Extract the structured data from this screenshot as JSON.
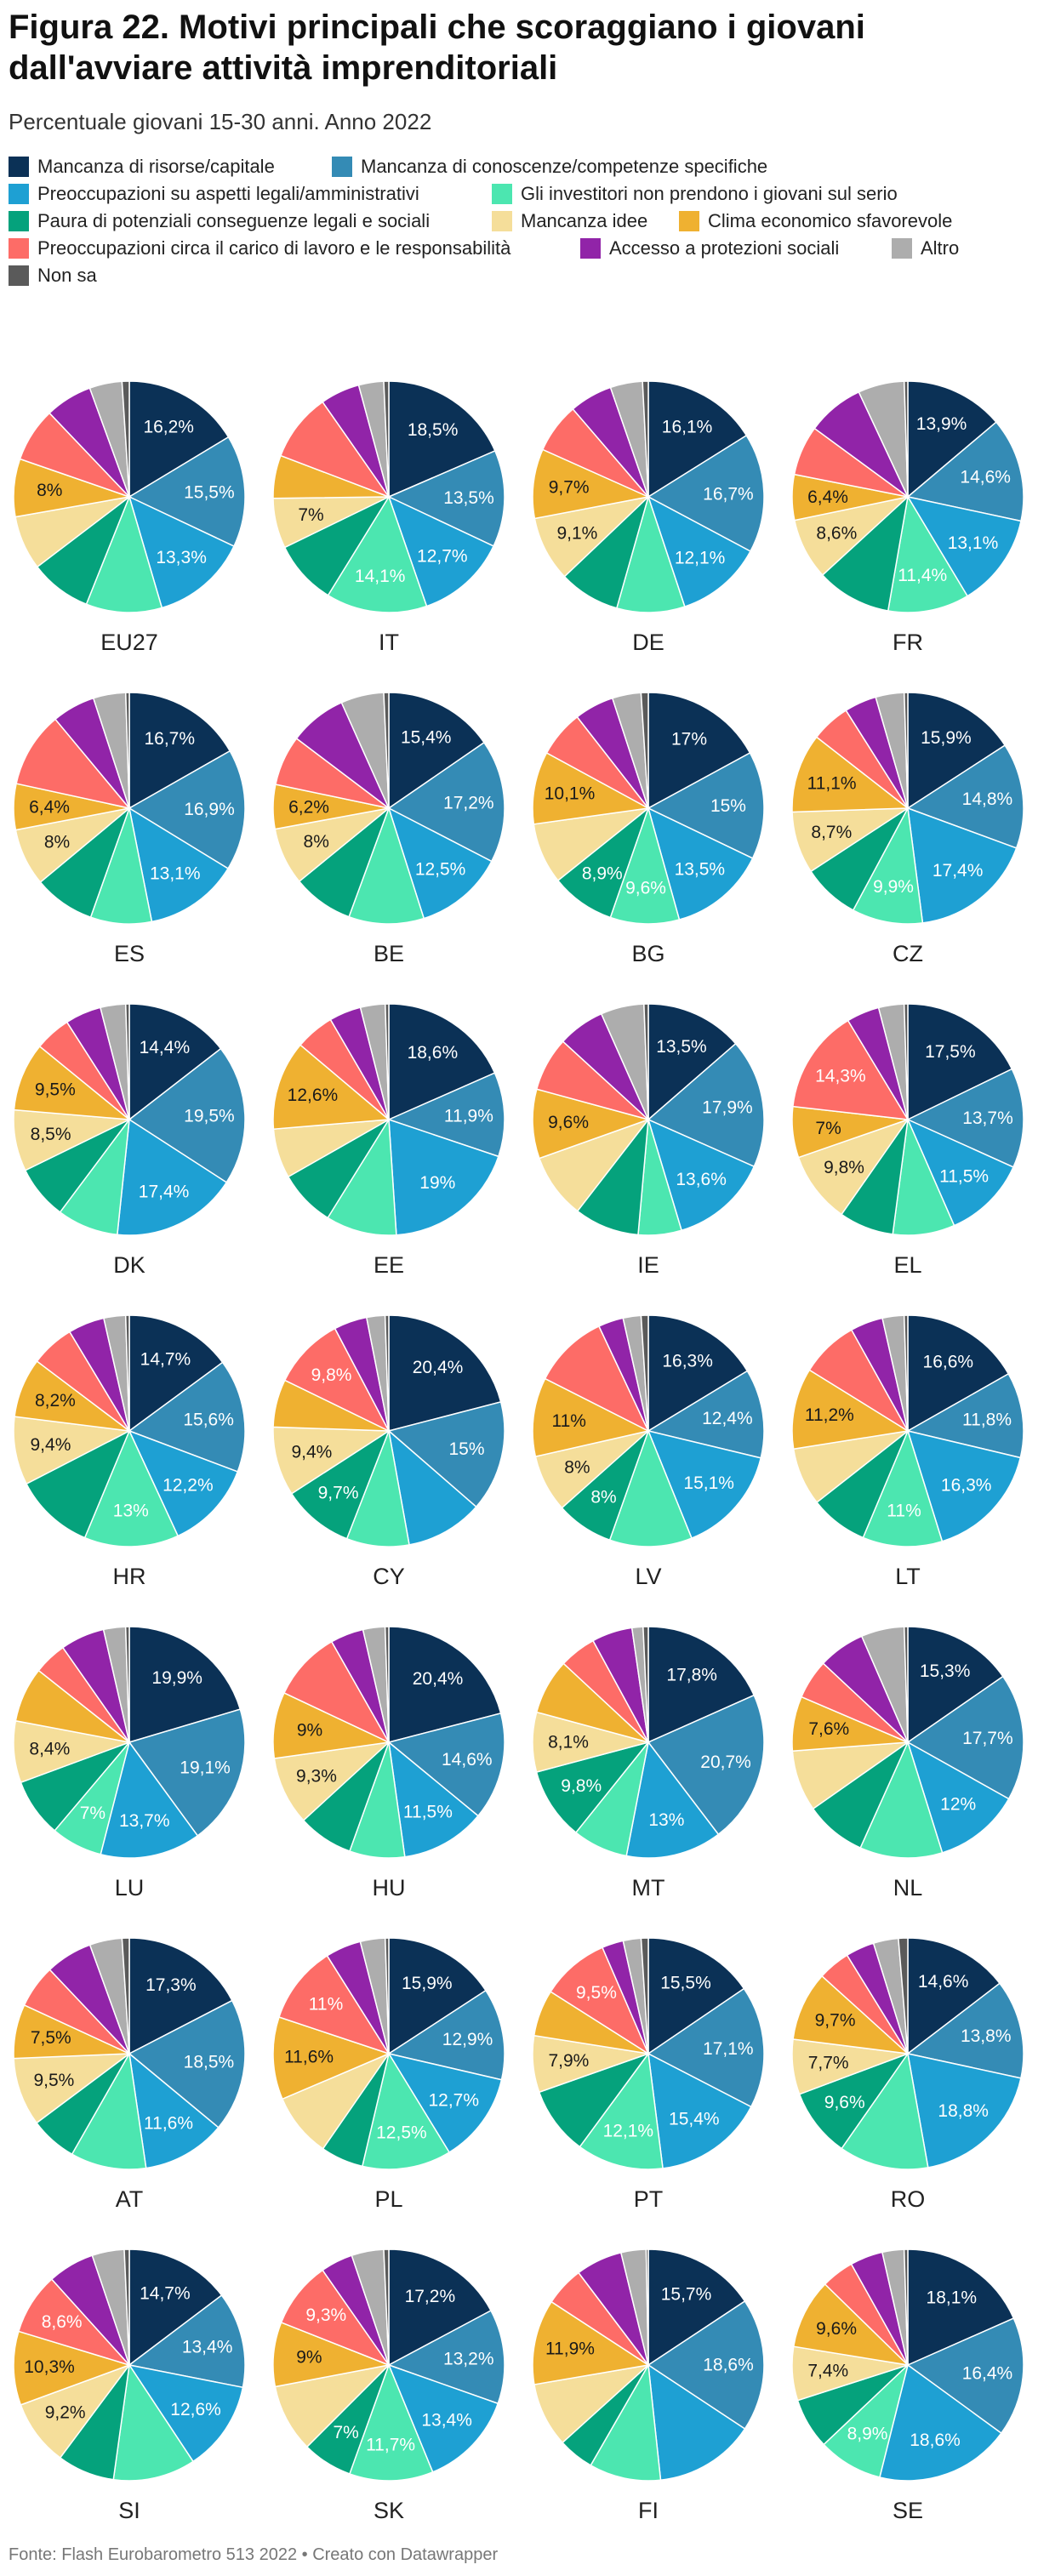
{
  "title": "Figura 22. Motivi principali che scoraggiano i giovani dall'avviare attività imprenditoriali",
  "subtitle": "Percentuale giovani 15-30 anni. Anno 2022",
  "footer": "Fonte: Flash Eurobarometro 513 2022 • Creato con Datawrapper",
  "colors": {
    "label_light": "#ffffff",
    "label_dark": "#1a1a1a",
    "separator": "#ffffff"
  },
  "legend": [
    {
      "label": "Mancanza di risorse/capitale",
      "color": "#0b3156"
    },
    {
      "label": "Mancanza di conoscenze/competenze specifiche",
      "color": "#348bb5"
    },
    {
      "label": "Preoccupazioni su aspetti legali/amministrativi",
      "color": "#1ea0d3"
    },
    {
      "label": "Gli investitori non prendono i giovani sul serio",
      "color": "#4ce6b0"
    },
    {
      "label": "Paura di potenziali conseguenze legali e sociali",
      "color": "#05a27c"
    },
    {
      "label": "Mancanza idee",
      "color": "#f5de9a"
    },
    {
      "label": "Clima economico sfavorevole",
      "color": "#efb131"
    },
    {
      "label": "Preoccupazioni circa il carico di lavoro e le responsabilità",
      "color": "#fd6c67"
    },
    {
      "label": "Accesso a protezioni sociali",
      "color": "#9124a8"
    },
    {
      "label": "Altro",
      "color": "#adadad"
    },
    {
      "label": "Non sa",
      "color": "#5a5a5a"
    }
  ],
  "chart_data": {
    "type": "pie",
    "unit": "%",
    "categories": [
      "Mancanza di risorse/capitale",
      "Mancanza di conoscenze/competenze specifiche",
      "Preoccupazioni su aspetti legali/amministrativi",
      "Gli investitori non prendono i giovani sul serio",
      "Paura di potenziali conseguenze legali e sociali",
      "Mancanza idee",
      "Clima economico sfavorevole",
      "Preoccupazioni circa il carico di lavoro e le responsabilità",
      "Accesso a protezioni sociali",
      "Altro",
      "Non sa"
    ],
    "series": [
      {
        "name": "EU27",
        "values": [
          16.2,
          15.5,
          13.3,
          10.5,
          8.5,
          7.5,
          8.0,
          7.5,
          6.5,
          4.5,
          1.0
        ],
        "labels": [
          "16,2%",
          "15,5%",
          "13,3%",
          "",
          "",
          "",
          "8%",
          "",
          "",
          "",
          ""
        ]
      },
      {
        "name": "IT",
        "values": [
          18.5,
          13.5,
          12.7,
          14.1,
          9.0,
          7.0,
          6.0,
          9.5,
          5.5,
          3.5,
          0.7
        ],
        "labels": [
          "18,5%",
          "13,5%",
          "12,7%",
          "14,1%",
          "",
          "7%",
          "",
          "",
          "",
          "",
          ""
        ]
      },
      {
        "name": "DE",
        "values": [
          16.1,
          16.7,
          12.1,
          9.5,
          8.5,
          9.1,
          9.7,
          7.0,
          6.0,
          4.5,
          0.8
        ],
        "labels": [
          "16,1%",
          "16,7%",
          "12,1%",
          "",
          "",
          "9,1%",
          "9,7%",
          "",
          "",
          "",
          ""
        ]
      },
      {
        "name": "FR",
        "values": [
          13.9,
          14.6,
          13.1,
          11.4,
          10.5,
          8.6,
          6.4,
          7.0,
          8.0,
          6.5,
          0.5
        ],
        "labels": [
          "13,9%",
          "14,6%",
          "13,1%",
          "11,4%",
          "",
          "8,6%",
          "6,4%",
          "",
          "",
          "",
          ""
        ]
      },
      {
        "name": "ES",
        "values": [
          16.7,
          16.9,
          13.1,
          8.5,
          8.5,
          8.0,
          6.4,
          10.5,
          6.0,
          4.5,
          0.5
        ],
        "labels": [
          "16,7%",
          "16,9%",
          "13,1%",
          "",
          "",
          "8%",
          "6,4%",
          "",
          "",
          "",
          ""
        ]
      },
      {
        "name": "BE",
        "values": [
          15.4,
          17.2,
          12.5,
          10.5,
          8.5,
          8.0,
          6.2,
          7.0,
          8.0,
          6.0,
          0.7
        ],
        "labels": [
          "15,4%",
          "17,2%",
          "12,5%",
          "",
          "",
          "8%",
          "6,2%",
          "",
          "",
          "",
          ""
        ]
      },
      {
        "name": "BG",
        "values": [
          17.0,
          15.0,
          13.5,
          9.6,
          8.9,
          8.5,
          10.1,
          6.5,
          5.5,
          4.0,
          1.0
        ],
        "labels": [
          "17%",
          "15%",
          "13,5%",
          "9,6%",
          "8,9%",
          "",
          "10,1%",
          "",
          "",
          "",
          ""
        ]
      },
      {
        "name": "CZ",
        "values": [
          15.9,
          14.8,
          17.4,
          9.9,
          8.0,
          8.7,
          11.1,
          5.5,
          4.5,
          4.0,
          0.5
        ],
        "labels": [
          "15,9%",
          "14,8%",
          "17,4%",
          "9,9%",
          "",
          "8,7%",
          "11,1%",
          "",
          "",
          "",
          ""
        ]
      },
      {
        "name": "DK",
        "values": [
          14.4,
          19.5,
          17.4,
          8.5,
          7.5,
          8.5,
          9.5,
          5.0,
          5.0,
          3.5,
          0.5
        ],
        "labels": [
          "14,4%",
          "19,5%",
          "17,4%",
          "",
          "",
          "8,5%",
          "9,5%",
          "",
          "",
          "",
          ""
        ]
      },
      {
        "name": "EE",
        "values": [
          18.6,
          11.9,
          19.0,
          10.0,
          8.0,
          7.0,
          12.6,
          5.5,
          4.5,
          3.5,
          0.5
        ],
        "labels": [
          "18,6%",
          "11,9%",
          "19%",
          "",
          "",
          "",
          "12,6%",
          "",
          "",
          "",
          ""
        ]
      },
      {
        "name": "IE",
        "values": [
          13.5,
          17.9,
          13.6,
          6.0,
          9.0,
          9.0,
          9.6,
          7.5,
          6.5,
          6.0,
          0.6
        ],
        "labels": [
          "13,5%",
          "17,9%",
          "13,6%",
          "",
          "",
          "",
          "9,6%",
          "",
          "",
          "",
          ""
        ]
      },
      {
        "name": "EL",
        "values": [
          17.5,
          13.7,
          11.5,
          8.5,
          7.5,
          9.8,
          7.0,
          14.3,
          4.5,
          3.5,
          0.5
        ],
        "labels": [
          "17,5%",
          "13,7%",
          "11,5%",
          "",
          "",
          "9,8%",
          "7%",
          "14,3%",
          "",
          "",
          ""
        ]
      },
      {
        "name": "HR",
        "values": [
          14.7,
          15.6,
          12.2,
          13.0,
          11.0,
          9.4,
          8.2,
          6.0,
          5.0,
          3.0,
          0.5
        ],
        "labels": [
          "14,7%",
          "15,6%",
          "12,2%",
          "13%",
          "",
          "9,4%",
          "8,2%",
          "",
          "",
          "",
          ""
        ]
      },
      {
        "name": "CY",
        "values": [
          20.4,
          15.0,
          10.5,
          8.5,
          9.7,
          9.4,
          6.5,
          9.8,
          4.5,
          2.5,
          0.5
        ],
        "labels": [
          "20,4%",
          "15%",
          "",
          "",
          "9,7%",
          "9,4%",
          "",
          "9,8%",
          "",
          "",
          ""
        ]
      },
      {
        "name": "LV",
        "values": [
          16.3,
          12.4,
          15.1,
          11.5,
          8.0,
          8.0,
          11.0,
          10.5,
          3.5,
          2.5,
          1.0
        ],
        "labels": [
          "16,3%",
          "12,4%",
          "15,1%",
          "",
          "8%",
          "8%",
          "11%",
          "",
          "",
          "",
          ""
        ]
      },
      {
        "name": "LT",
        "values": [
          16.6,
          11.8,
          16.3,
          11.0,
          8.0,
          8.0,
          11.2,
          8.0,
          4.5,
          3.0,
          0.5
        ],
        "labels": [
          "16,6%",
          "11,8%",
          "16,3%",
          "11%",
          "",
          "",
          "11,2%",
          "",
          "",
          "",
          ""
        ]
      },
      {
        "name": "LU",
        "values": [
          19.9,
          19.1,
          13.7,
          7.0,
          8.0,
          8.4,
          7.5,
          4.5,
          6.0,
          3.0,
          0.5
        ],
        "labels": [
          "19,9%",
          "19,1%",
          "13,7%",
          "7%",
          "",
          "8,4%",
          "",
          "",
          "",
          "",
          ""
        ]
      },
      {
        "name": "HU",
        "values": [
          20.4,
          14.6,
          11.5,
          7.5,
          7.5,
          9.3,
          9.0,
          9.5,
          4.5,
          3.0,
          0.5
        ],
        "labels": [
          "20,4%",
          "14,6%",
          "11,5%",
          "",
          "",
          "9,3%",
          "9%",
          "",
          "",
          "",
          ""
        ]
      },
      {
        "name": "MT",
        "values": [
          17.8,
          20.7,
          13.0,
          7.5,
          9.8,
          8.1,
          7.5,
          5.0,
          5.5,
          1.5,
          0.7
        ],
        "labels": [
          "17,8%",
          "20,7%",
          "13%",
          "",
          "9,8%",
          "8,1%",
          "",
          "",
          "",
          "",
          ""
        ]
      },
      {
        "name": "NL",
        "values": [
          15.3,
          17.7,
          12.0,
          11.5,
          8.5,
          8.5,
          7.6,
          5.5,
          6.5,
          6.0,
          0.5
        ],
        "labels": [
          "15,3%",
          "17,7%",
          "12%",
          "",
          "",
          "",
          "7,6%",
          "",
          "",
          "",
          ""
        ]
      },
      {
        "name": "AT",
        "values": [
          17.3,
          18.5,
          11.6,
          10.5,
          6.5,
          9.5,
          7.5,
          6.0,
          6.5,
          4.5,
          1.0
        ],
        "labels": [
          "17,3%",
          "18,5%",
          "11,6%",
          "",
          "",
          "9,5%",
          "7,5%",
          "",
          "",
          "",
          ""
        ]
      },
      {
        "name": "PL",
        "values": [
          15.9,
          12.9,
          12.7,
          12.5,
          6.0,
          9.0,
          11.6,
          11.0,
          5.0,
          3.5,
          0.5
        ],
        "labels": [
          "15,9%",
          "12,9%",
          "12,7%",
          "12,5%",
          "",
          "",
          "11,6%",
          "11%",
          "",
          "",
          ""
        ]
      },
      {
        "name": "PT",
        "values": [
          15.5,
          17.1,
          15.4,
          12.1,
          9.5,
          7.9,
          6.5,
          9.5,
          3.0,
          2.5,
          1.0
        ],
        "labels": [
          "15,5%",
          "17,1%",
          "15,4%",
          "12,1%",
          "",
          "7,9%",
          "",
          "9,5%",
          "",
          "",
          ""
        ]
      },
      {
        "name": "RO",
        "values": [
          14.6,
          13.8,
          18.8,
          12.5,
          9.6,
          7.7,
          9.7,
          4.5,
          4.0,
          3.5,
          1.3
        ],
        "labels": [
          "14,6%",
          "13,8%",
          "18,8%",
          "",
          "9,6%",
          "7,7%",
          "9,7%",
          "",
          "",
          "",
          ""
        ]
      },
      {
        "name": "SI",
        "values": [
          14.7,
          13.4,
          12.6,
          11.5,
          8.0,
          9.2,
          10.3,
          8.6,
          6.5,
          4.5,
          0.7
        ],
        "labels": [
          "14,7%",
          "13,4%",
          "12,6%",
          "",
          "",
          "9,2%",
          "10,3%",
          "8,6%",
          "",
          "",
          ""
        ]
      },
      {
        "name": "SK",
        "values": [
          17.2,
          13.2,
          13.4,
          11.7,
          7.0,
          9.5,
          9.0,
          9.3,
          4.5,
          4.5,
          0.7
        ],
        "labels": [
          "17,2%",
          "13,2%",
          "13,4%",
          "11,7%",
          "7%",
          "",
          "9%",
          "9,3%",
          "",
          "",
          ""
        ]
      },
      {
        "name": "FI",
        "values": [
          15.7,
          18.6,
          14.0,
          10.0,
          5.0,
          9.0,
          11.9,
          5.5,
          6.5,
          3.5,
          0.3
        ],
        "labels": [
          "15,7%",
          "18,6%",
          "",
          "",
          "",
          "",
          "11,9%",
          "",
          "",
          "",
          ""
        ]
      },
      {
        "name": "SE",
        "values": [
          18.1,
          16.4,
          18.6,
          8.9,
          7.0,
          7.4,
          9.6,
          4.5,
          4.5,
          3.0,
          0.5
        ],
        "labels": [
          "18,1%",
          "16,4%",
          "18,6%",
          "8,9%",
          "",
          "7,4%",
          "9,6%",
          "",
          "",
          "",
          ""
        ]
      }
    ]
  }
}
